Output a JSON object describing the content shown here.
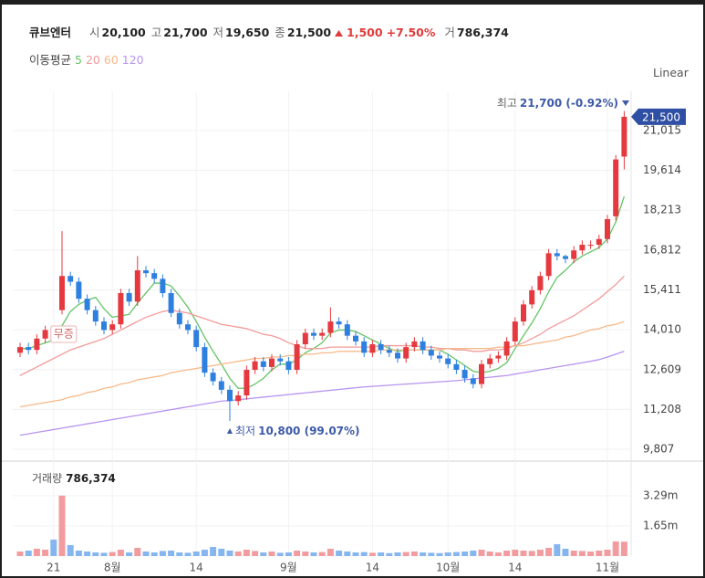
{
  "header": {
    "name": "큐브엔터",
    "items": [
      {
        "label": "시",
        "value": "20,100"
      },
      {
        "label": "고",
        "value": "21,700"
      },
      {
        "label": "저",
        "value": "19,650"
      },
      {
        "label": "종",
        "value": "21,500"
      }
    ],
    "change": "1,500",
    "change_pct": "+7.50%",
    "volume_label": "거",
    "volume": "786,374"
  },
  "ma_legend_title": "이동평균",
  "scale_button": "Linear",
  "chart_data": [
    {
      "type": "candlestick",
      "categories": [
        null,
        null,
        null,
        null,
        "21",
        null,
        null,
        null,
        null,
        null,
        null,
        "8월",
        null,
        null,
        null,
        null,
        null,
        null,
        null,
        null,
        null,
        "14",
        null,
        null,
        null,
        null,
        null,
        null,
        null,
        null,
        null,
        null,
        "9월",
        null,
        null,
        null,
        null,
        null,
        null,
        null,
        null,
        null,
        "14",
        null,
        null,
        null,
        null,
        null,
        null,
        null,
        null,
        "10월",
        null,
        null,
        null,
        null,
        null,
        null,
        null,
        "14",
        null,
        null,
        null,
        null,
        null,
        null,
        null,
        null,
        null,
        null,
        "11월",
        null,
        null
      ],
      "open": [
        13200,
        13400,
        13300,
        13700,
        14000,
        14700,
        15900,
        15700,
        15100,
        14700,
        14300,
        14000,
        14200,
        15300,
        15000,
        16100,
        16000,
        15800,
        15300,
        14600,
        14200,
        14000,
        13400,
        12500,
        12200,
        11900,
        11500,
        11700,
        12600,
        12900,
        12700,
        13000,
        12900,
        12600,
        13500,
        13900,
        13800,
        13900,
        14300,
        14200,
        13800,
        13600,
        13200,
        13500,
        13300,
        13200,
        13000,
        13400,
        13600,
        13300,
        13100,
        13000,
        12800,
        12600,
        12300,
        12100,
        12800,
        13000,
        13100,
        13600,
        14300,
        14900,
        15400,
        15900,
        16700,
        16600,
        16500,
        16800,
        17000,
        17000,
        17200,
        18000,
        20100
      ],
      "high": [
        13550,
        13550,
        13850,
        14150,
        14150,
        17480,
        16050,
        15850,
        15250,
        14850,
        14450,
        14350,
        15450,
        15450,
        16600,
        16250,
        16150,
        15950,
        15450,
        14750,
        14350,
        14150,
        13550,
        12650,
        12350,
        12050,
        11850,
        12750,
        13050,
        13050,
        13150,
        13150,
        13050,
        13650,
        14050,
        14050,
        14050,
        14800,
        14450,
        14350,
        13950,
        13750,
        13650,
        13650,
        13450,
        13350,
        13550,
        13750,
        13750,
        13450,
        13250,
        13150,
        12950,
        12750,
        12450,
        12950,
        13150,
        13250,
        13750,
        14450,
        15050,
        15550,
        16050,
        16850,
        16850,
        16650,
        16950,
        17150,
        17150,
        17350,
        18050,
        20150,
        21700
      ],
      "low": [
        13050,
        13150,
        13150,
        13550,
        13750,
        14550,
        15550,
        14950,
        14550,
        14150,
        13850,
        13850,
        14050,
        14850,
        14850,
        15850,
        15650,
        15150,
        14450,
        14050,
        13850,
        13250,
        12350,
        12050,
        11750,
        10800,
        11350,
        11550,
        12450,
        12550,
        12550,
        12750,
        12450,
        12450,
        13350,
        13650,
        13650,
        13750,
        14050,
        13650,
        13450,
        13050,
        13050,
        13150,
        13050,
        12850,
        12850,
        13250,
        13150,
        12950,
        12850,
        12650,
        12450,
        12150,
        11950,
        11950,
        12650,
        12850,
        12950,
        13450,
        14150,
        14750,
        15250,
        15750,
        16450,
        16350,
        16350,
        16650,
        16850,
        16850,
        17050,
        17850,
        19650
      ],
      "close": [
        13400,
        13300,
        13700,
        14000,
        13900,
        15900,
        15700,
        15100,
        14700,
        14300,
        14000,
        14200,
        15300,
        15000,
        16100,
        16000,
        15800,
        15300,
        14600,
        14200,
        14000,
        13400,
        12500,
        12200,
        11900,
        11500,
        11700,
        12600,
        12900,
        12700,
        13000,
        12900,
        12600,
        13500,
        13900,
        13800,
        13900,
        14300,
        14200,
        13800,
        13600,
        13200,
        13500,
        13300,
        13200,
        13000,
        13400,
        13600,
        13300,
        13100,
        13000,
        12800,
        12600,
        12300,
        12100,
        12800,
        13000,
        13100,
        13600,
        14300,
        14900,
        15400,
        15900,
        16700,
        16600,
        16500,
        16800,
        17000,
        17000,
        17200,
        17900,
        20000,
        21500
      ],
      "up_color": "#e5393f",
      "down_color": "#2d7fe0",
      "series": [
        {
          "name": "5",
          "color": "#63c466",
          "values": [
            13350,
            13350,
            13450,
            13550,
            13650,
            14150,
            14650,
            14900,
            15050,
            15150,
            14750,
            14450,
            14500,
            14550,
            14950,
            15300,
            15650,
            15650,
            15550,
            15200,
            14800,
            14300,
            13750,
            13250,
            12800,
            12300,
            11950,
            11950,
            12100,
            12300,
            12600,
            12800,
            12800,
            12950,
            13200,
            13350,
            13550,
            13900,
            14000,
            14000,
            13950,
            13800,
            13650,
            13500,
            13350,
            13250,
            13300,
            13300,
            13300,
            13300,
            13300,
            13150,
            12950,
            12750,
            12550,
            12500,
            12550,
            12650,
            12850,
            13350,
            13800,
            14250,
            14750,
            15350,
            15850,
            16100,
            16400,
            16600,
            16750,
            16900,
            17200,
            17800,
            18700
          ]
        },
        {
          "name": "20",
          "color": "#f39a9a",
          "values": [
            12400,
            12550,
            12700,
            12850,
            13000,
            13150,
            13300,
            13400,
            13500,
            13600,
            13700,
            13850,
            14000,
            14150,
            14300,
            14450,
            14550,
            14650,
            14700,
            14650,
            14600,
            14500,
            14400,
            14300,
            14200,
            14150,
            14100,
            14050,
            13950,
            13850,
            13800,
            13700,
            13550,
            13450,
            13350,
            13350,
            13350,
            13400,
            13400,
            13400,
            13400,
            13400,
            13400,
            13450,
            13450,
            13450,
            13450,
            13450,
            13400,
            13400,
            13350,
            13350,
            13300,
            13300,
            13250,
            13250,
            13300,
            13300,
            13350,
            13450,
            13550,
            13700,
            13850,
            14050,
            14200,
            14350,
            14500,
            14700,
            14900,
            15100,
            15350,
            15600,
            15900
          ]
        },
        {
          "name": "60",
          "color": "#f6b98a",
          "values": [
            11300,
            11350,
            11400,
            11450,
            11500,
            11550,
            11650,
            11700,
            11800,
            11850,
            11950,
            12000,
            12100,
            12150,
            12250,
            12300,
            12350,
            12400,
            12500,
            12550,
            12600,
            12650,
            12700,
            12750,
            12800,
            12850,
            12900,
            12950,
            13000,
            13000,
            13050,
            13050,
            13100,
            13100,
            13150,
            13150,
            13200,
            13200,
            13250,
            13250,
            13250,
            13250,
            13250,
            13300,
            13300,
            13300,
            13300,
            13300,
            13300,
            13300,
            13300,
            13350,
            13350,
            13350,
            13350,
            13350,
            13350,
            13400,
            13400,
            13450,
            13450,
            13500,
            13550,
            13600,
            13650,
            13750,
            13800,
            13900,
            14000,
            14050,
            14150,
            14200,
            14300
          ]
        },
        {
          "name": "120",
          "color": "#b794f0",
          "values": [
            10300,
            10350,
            10400,
            10450,
            10500,
            10550,
            10600,
            10650,
            10700,
            10750,
            10800,
            10850,
            10900,
            10950,
            11000,
            11050,
            11100,
            11150,
            11200,
            11250,
            11300,
            11350,
            11400,
            11450,
            11500,
            11520,
            11550,
            11580,
            11610,
            11640,
            11670,
            11700,
            11730,
            11760,
            11790,
            11820,
            11850,
            11880,
            11910,
            11940,
            11970,
            12000,
            12020,
            12040,
            12060,
            12080,
            12100,
            12120,
            12140,
            12160,
            12180,
            12200,
            12220,
            12250,
            12280,
            12310,
            12340,
            12370,
            12400,
            12450,
            12500,
            12550,
            12600,
            12650,
            12700,
            12750,
            12800,
            12850,
            12900,
            12960,
            13050,
            13150,
            13250
          ]
        }
      ],
      "ylim": [
        9486,
        22235
      ],
      "yticks": [
        {
          "value": 9807,
          "label": "9,807"
        },
        {
          "value": 11208,
          "label": "11,208"
        },
        {
          "value": 12609,
          "label": "12,609"
        },
        {
          "value": 14010,
          "label": "14,010"
        },
        {
          "value": 15411,
          "label": "15,411"
        },
        {
          "value": 16812,
          "label": "16,812"
        },
        {
          "value": 18213,
          "label": "18,213"
        },
        {
          "value": 19614,
          "label": "19,614"
        },
        {
          "value": 21015,
          "label": "21,015"
        }
      ],
      "grid": true,
      "last_price_label": "21,500",
      "high_label": "최고",
      "high_text": "21,700 (-0.92%)",
      "low_label": "최저",
      "low_text": "10,800 (99.07%)",
      "event_label": "무증"
    },
    {
      "type": "bar",
      "title": "거래량",
      "value_label": "786,374",
      "values": [
        250000,
        300000,
        400000,
        350000,
        900000,
        3300000,
        600000,
        300000,
        250000,
        200000,
        180000,
        220000,
        350000,
        200000,
        450000,
        250000,
        200000,
        280000,
        300000,
        200000,
        180000,
        250000,
        350000,
        500000,
        400000,
        300000,
        250000,
        350000,
        280000,
        200000,
        250000,
        180000,
        200000,
        300000,
        250000,
        200000,
        220000,
        400000,
        300000,
        250000,
        200000,
        220000,
        180000,
        200000,
        160000,
        200000,
        220000,
        250000,
        200000,
        180000,
        160000,
        200000,
        220000,
        250000,
        300000,
        350000,
        250000,
        200000,
        300000,
        350000,
        300000,
        280000,
        350000,
        450000,
        650000,
        400000,
        300000,
        280000,
        250000,
        300000,
        350000,
        800000,
        786374
      ],
      "up_color": "#f29c9f",
      "down_color": "#86b6f0",
      "ylim": [
        0,
        4930000
      ],
      "yticks": [
        {
          "value": 1650000,
          "label": "1.65m"
        },
        {
          "value": 3290000,
          "label": "3.29m"
        }
      ]
    }
  ]
}
